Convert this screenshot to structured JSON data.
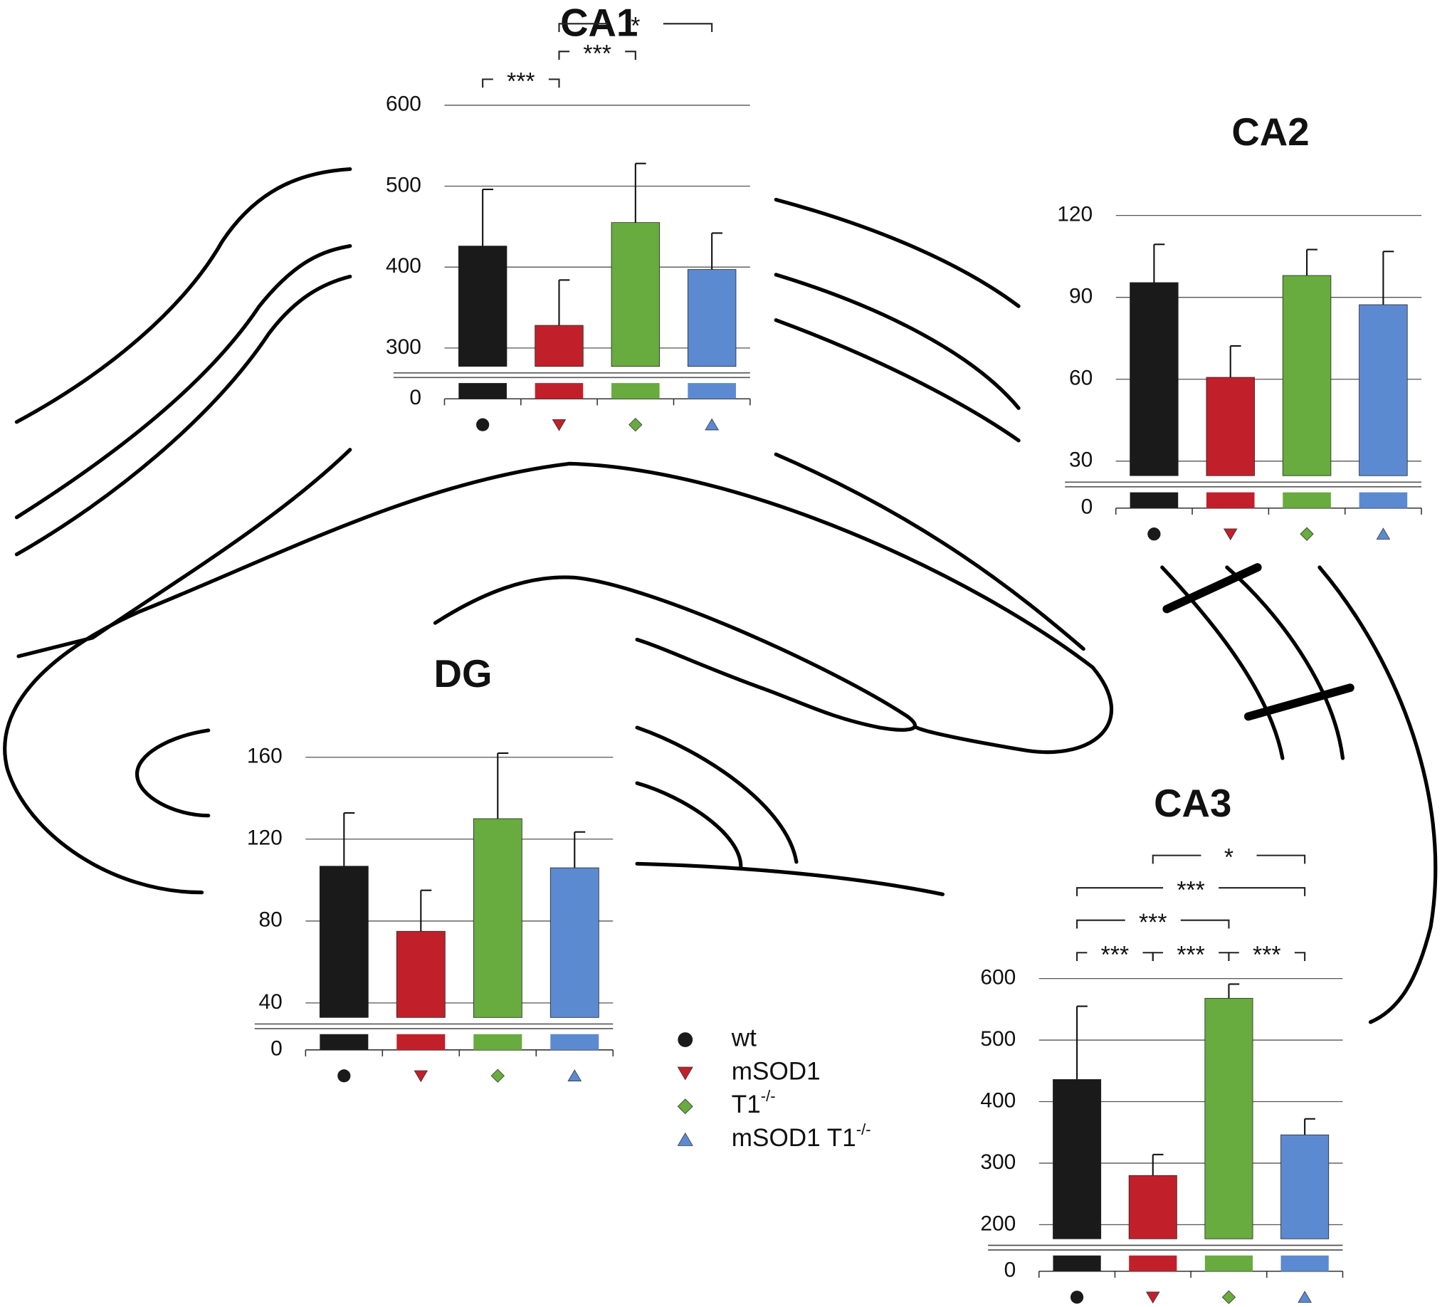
{
  "groups": [
    {
      "name": "wt",
      "color": "#1a1a1a",
      "marker": "circle"
    },
    {
      "name": "mSOD1",
      "color": "#c1202b",
      "marker": "triangle-down"
    },
    {
      "name": "T1",
      "name_sup": "-/-",
      "color": "#68ab3e",
      "marker": "diamond"
    },
    {
      "name": "mSOD1 T1",
      "name_sup": "-/-",
      "color": "#5b8ad0",
      "marker": "triangle-up"
    }
  ],
  "chart_data": [
    {
      "type": "bar",
      "title": "CA1",
      "values": [
        426,
        328,
        455,
        397
      ],
      "errors": [
        70,
        56,
        73,
        45
      ],
      "ylim": [
        0,
        600
      ],
      "ybreak": 275,
      "yticks": [
        0,
        300,
        400,
        500,
        600
      ],
      "grid": true,
      "annotations": [
        {
          "pair": [
            0,
            1
          ],
          "label": "***"
        },
        {
          "pair": [
            1,
            2
          ],
          "label": "***"
        },
        {
          "pair": [
            1,
            3
          ],
          "label": "*"
        }
      ]
    },
    {
      "type": "bar",
      "title": "CA2",
      "values": [
        95.4,
        60.7,
        98,
        87.3
      ],
      "errors": [
        14,
        11.5,
        9.5,
        19.5
      ],
      "ylim": [
        0,
        120
      ],
      "ybreak": 24,
      "yticks": [
        0,
        30,
        60,
        90,
        120
      ],
      "grid": true,
      "annotations": []
    },
    {
      "type": "bar",
      "title": "DG",
      "values": [
        106.8,
        75,
        130,
        106
      ],
      "errors": [
        26,
        20,
        32,
        17.5
      ],
      "ylim": [
        0,
        160
      ],
      "ybreak": 32,
      "yticks": [
        0,
        40,
        80,
        120,
        160
      ],
      "grid": true,
      "annotations": []
    },
    {
      "type": "bar",
      "title": "CA3",
      "values": [
        436,
        280,
        568,
        346
      ],
      "errors": [
        119,
        34,
        23,
        26
      ],
      "ylim": [
        0,
        600
      ],
      "ybreak": 174,
      "yticks": [
        0,
        200,
        300,
        400,
        500,
        600
      ],
      "grid": true,
      "annotations": [
        {
          "pair": [
            0,
            1
          ],
          "label": "***"
        },
        {
          "pair": [
            1,
            2
          ],
          "label": "***"
        },
        {
          "pair": [
            2,
            3
          ],
          "label": "***"
        },
        {
          "pair": [
            0,
            2
          ],
          "label": "***"
        },
        {
          "pair": [
            0,
            3
          ],
          "label": "***"
        },
        {
          "pair": [
            1,
            3
          ],
          "label": "*"
        }
      ]
    }
  ]
}
